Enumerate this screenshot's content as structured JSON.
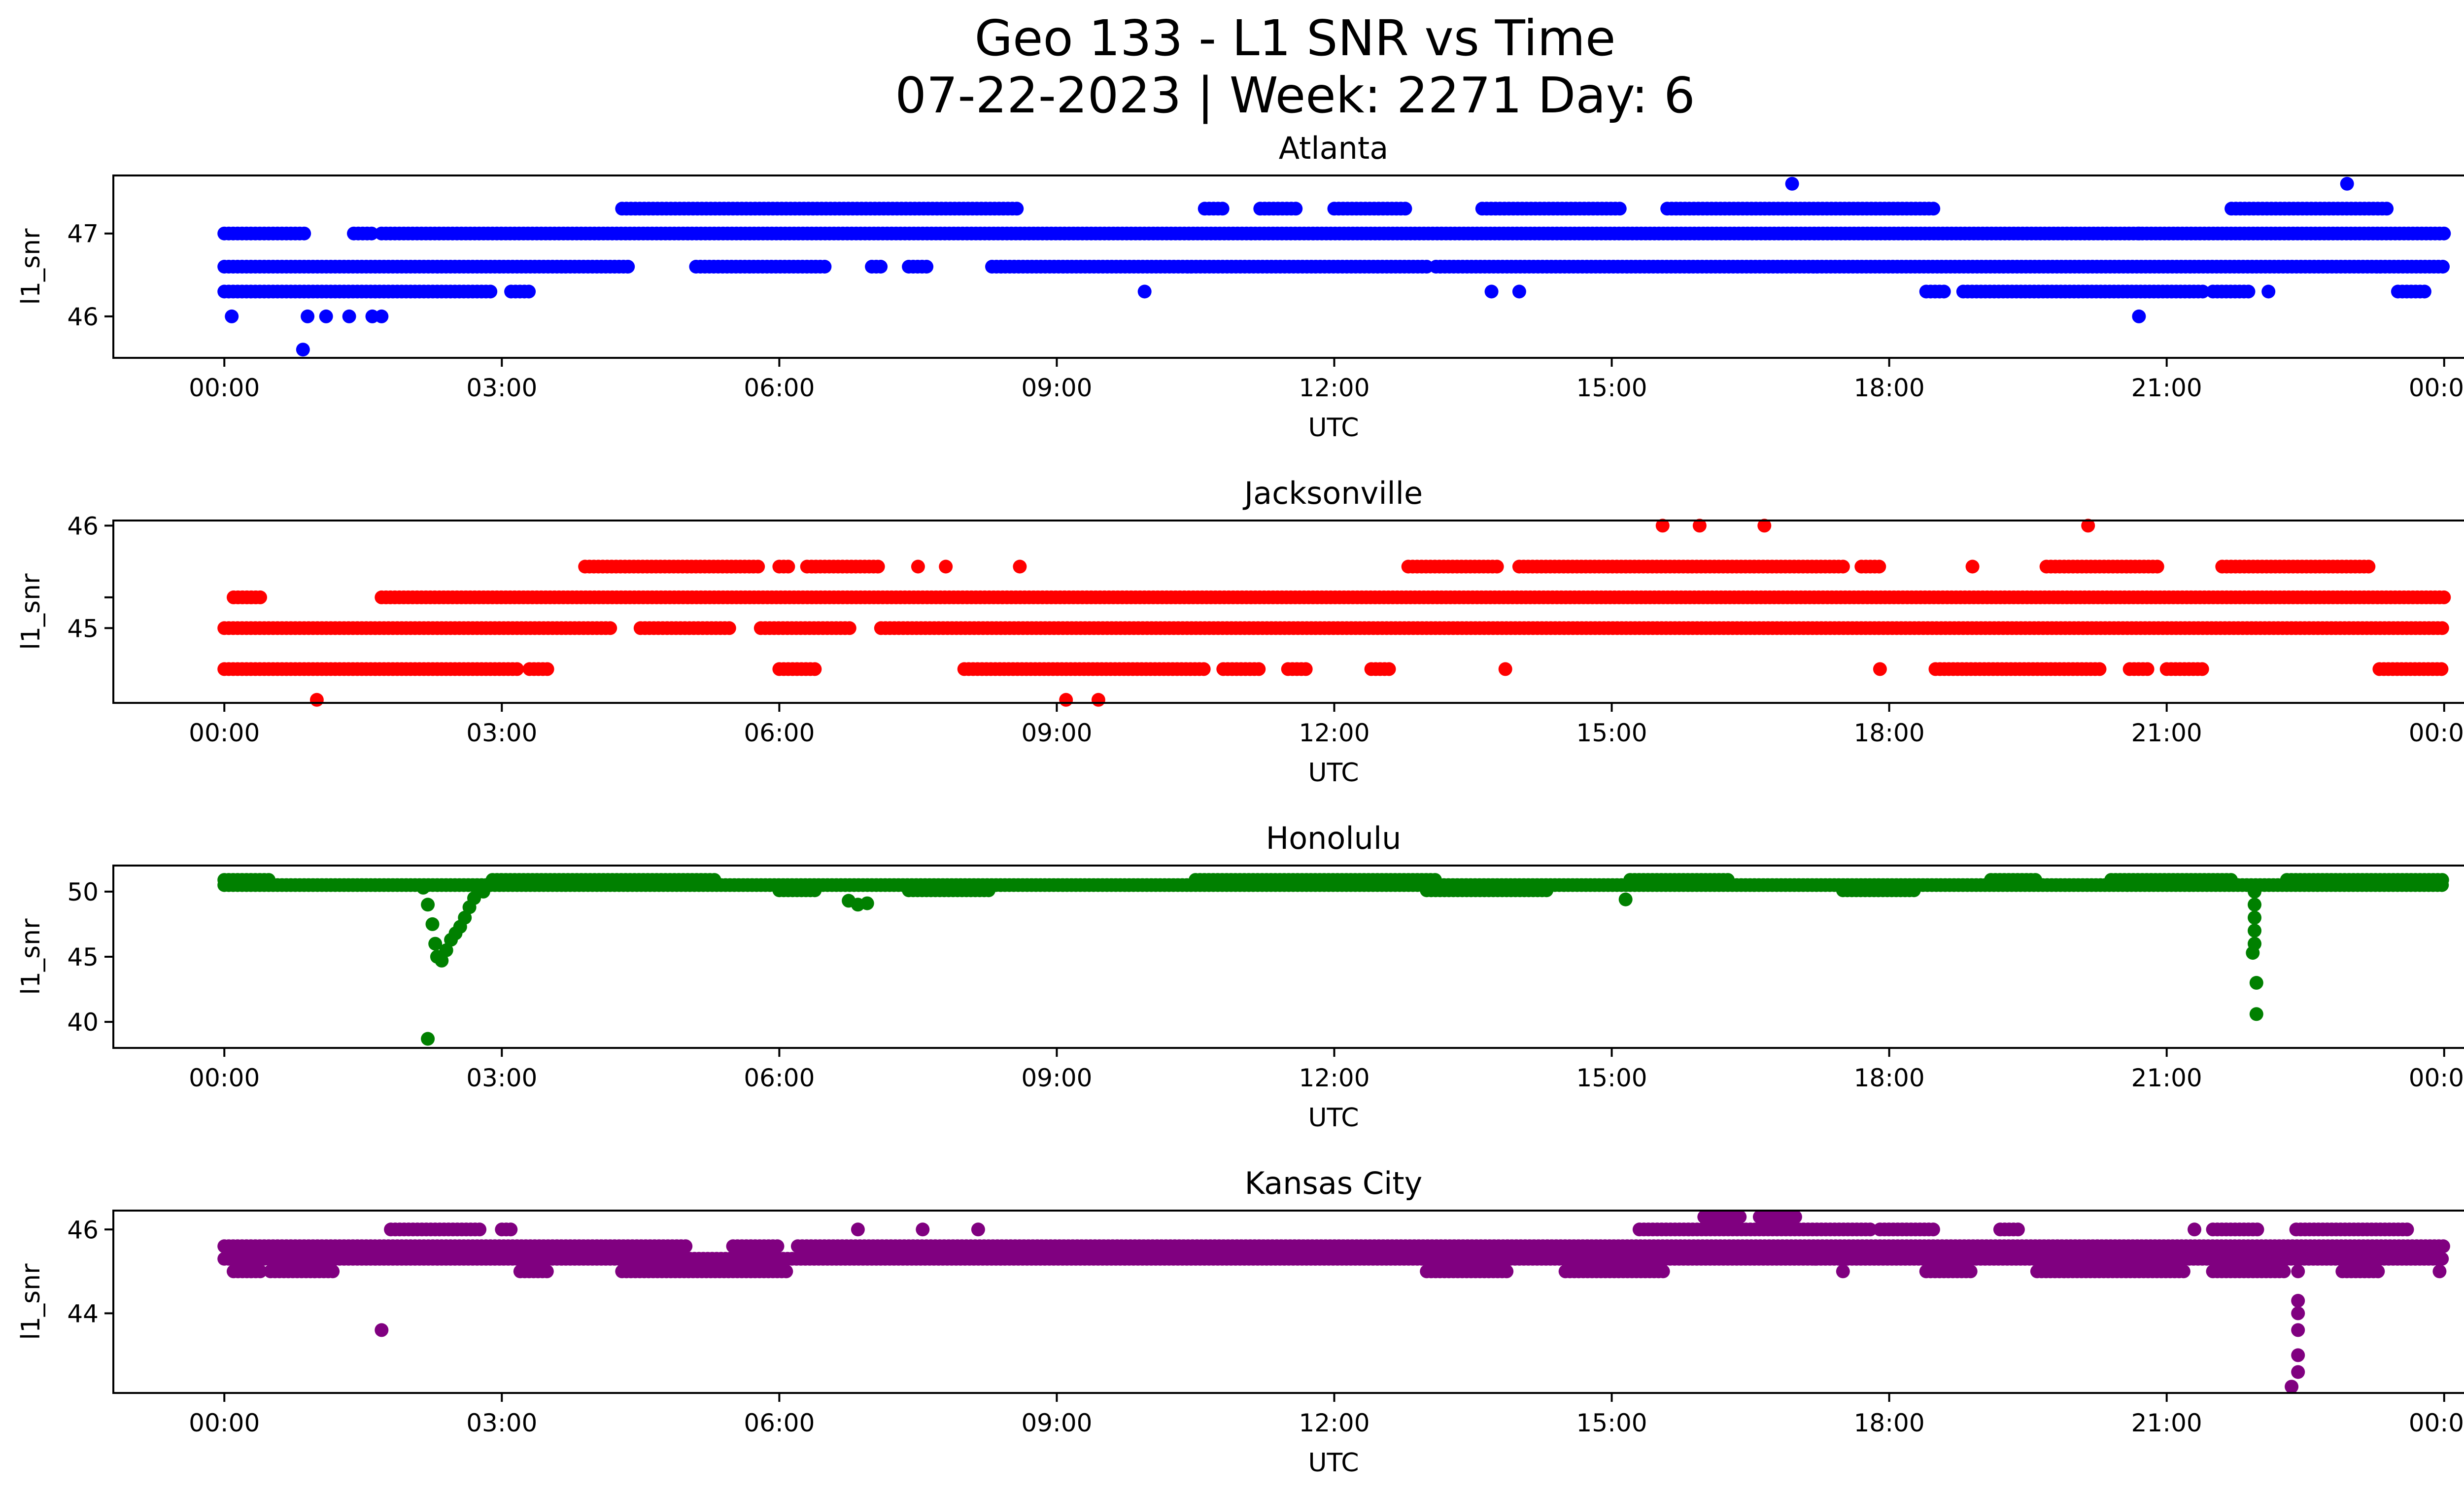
{
  "figure": {
    "title_line1": "Geo 133 - L1 SNR vs Time",
    "title_line2": "07-22-2023 | Week: 2271 Day: 6"
  },
  "chart_data": [
    {
      "type": "scatter",
      "title": "Atlanta",
      "xlabel": "UTC",
      "ylabel": "l1_snr",
      "color": "#0000ff",
      "xlim_hours": [
        -1.2,
        25.2
      ],
      "ylim": [
        45.5,
        47.7
      ],
      "yticks": [
        46,
        47
      ],
      "xtick_hours": [
        0,
        3,
        6,
        9,
        12,
        15,
        18,
        21,
        24
      ],
      "xtick_labels": [
        "00:00",
        "03:00",
        "06:00",
        "09:00",
        "12:00",
        "15:00",
        "18:00",
        "21:00",
        "00:00"
      ],
      "bands": [
        {
          "y": 47.0,
          "segments": [
            [
              0.0,
              0.9
            ],
            [
              1.4,
              1.6
            ],
            [
              1.7,
              24.0
            ]
          ]
        },
        {
          "y": 46.6,
          "segments": [
            [
              0.0,
              4.4
            ],
            [
              5.1,
              6.5
            ],
            [
              7.0,
              7.1
            ],
            [
              7.4,
              7.6
            ],
            [
              8.3,
              13.0
            ],
            [
              13.1,
              24.0
            ]
          ]
        },
        {
          "y": 46.3,
          "segments": [
            [
              0.0,
              2.9
            ],
            [
              3.1,
              3.3
            ],
            [
              18.4,
              18.6
            ],
            [
              18.8,
              21.4
            ],
            [
              21.5,
              21.9
            ],
            [
              23.5,
              23.8
            ]
          ]
        },
        {
          "y": 47.3,
          "segments": [
            [
              4.3,
              8.6
            ],
            [
              10.6,
              10.8
            ],
            [
              11.2,
              11.6
            ],
            [
              12.0,
              12.8
            ],
            [
              13.6,
              15.1
            ],
            [
              15.6,
              18.5
            ],
            [
              21.7,
              23.4
            ]
          ]
        }
      ],
      "outliers": [
        {
          "t": 0.08,
          "v": 46.0
        },
        {
          "t": 0.85,
          "v": 45.6
        },
        {
          "t": 0.9,
          "v": 46.0
        },
        {
          "t": 1.1,
          "v": 46.0
        },
        {
          "t": 1.35,
          "v": 46.0
        },
        {
          "t": 1.6,
          "v": 46.0
        },
        {
          "t": 1.7,
          "v": 46.0
        },
        {
          "t": 16.95,
          "v": 47.6
        },
        {
          "t": 22.95,
          "v": 47.6
        },
        {
          "t": 9.95,
          "v": 46.3
        },
        {
          "t": 13.7,
          "v": 46.3
        },
        {
          "t": 14.0,
          "v": 46.3
        },
        {
          "t": 20.7,
          "v": 46.0
        },
        {
          "t": 22.1,
          "v": 46.3
        },
        {
          "t": 20.7,
          "v": 47.0
        }
      ]
    },
    {
      "type": "scatter",
      "title": "Jacksonville",
      "xlabel": "UTC",
      "ylabel": "l1_snr",
      "color": "#ff0000",
      "xlim_hours": [
        -1.2,
        25.2
      ],
      "ylim": [
        44.27,
        46.05
      ],
      "yticks": [
        45,
        46
      ],
      "yticks_minor": [
        45.3
      ],
      "xtick_hours": [
        0,
        3,
        6,
        9,
        12,
        15,
        18,
        21,
        24
      ],
      "xtick_labels": [
        "00:00",
        "03:00",
        "06:00",
        "09:00",
        "12:00",
        "15:00",
        "18:00",
        "21:00",
        "00:00"
      ],
      "bands": [
        {
          "y": 45.0,
          "segments": [
            [
              0.0,
              4.2
            ],
            [
              4.5,
              5.5
            ],
            [
              5.8,
              6.8
            ],
            [
              7.1,
              24.0
            ]
          ]
        },
        {
          "y": 45.3,
          "segments": [
            [
              0.1,
              0.4
            ],
            [
              1.7,
              24.0
            ]
          ]
        },
        {
          "y": 44.6,
          "segments": [
            [
              0.0,
              3.2
            ],
            [
              3.3,
              3.5
            ],
            [
              6.0,
              6.4
            ],
            [
              8.0,
              10.6
            ],
            [
              10.8,
              11.2
            ],
            [
              11.5,
              11.7
            ],
            [
              12.4,
              12.6
            ],
            [
              18.5,
              20.3
            ],
            [
              20.6,
              20.8
            ],
            [
              21.0,
              21.4
            ],
            [
              23.3,
              24.0
            ]
          ]
        },
        {
          "y": 45.6,
          "segments": [
            [
              3.9,
              5.8
            ],
            [
              6.0,
              6.1
            ],
            [
              6.3,
              7.1
            ],
            [
              12.8,
              13.8
            ],
            [
              14.0,
              17.5
            ],
            [
              17.7,
              17.9
            ],
            [
              19.7,
              20.9
            ],
            [
              21.6,
              23.2
            ]
          ]
        }
      ],
      "outliers": [
        {
          "t": 1.0,
          "v": 44.3
        },
        {
          "t": 9.1,
          "v": 44.3
        },
        {
          "t": 9.45,
          "v": 44.3
        },
        {
          "t": 15.55,
          "v": 46.0
        },
        {
          "t": 15.95,
          "v": 46.0
        },
        {
          "t": 16.65,
          "v": 46.0
        },
        {
          "t": 20.15,
          "v": 46.0
        },
        {
          "t": 7.5,
          "v": 45.6
        },
        {
          "t": 7.8,
          "v": 45.6
        },
        {
          "t": 8.6,
          "v": 45.6
        },
        {
          "t": 18.9,
          "v": 45.6
        },
        {
          "t": 13.85,
          "v": 44.6
        },
        {
          "t": 17.9,
          "v": 44.6
        }
      ]
    },
    {
      "type": "scatter",
      "title": "Honolulu",
      "xlabel": "UTC",
      "ylabel": "l1_snr",
      "color": "#008000",
      "xlim_hours": [
        -1.2,
        25.2
      ],
      "ylim": [
        38.0,
        52.0
      ],
      "yticks": [
        40,
        45,
        50
      ],
      "xtick_hours": [
        0,
        3,
        6,
        9,
        12,
        15,
        18,
        21,
        24
      ],
      "xtick_labels": [
        "00:00",
        "03:00",
        "06:00",
        "09:00",
        "12:00",
        "15:00",
        "18:00",
        "21:00",
        "00:00"
      ],
      "bands": [
        {
          "y": 50.5,
          "segments": [
            [
              0.0,
              24.0
            ]
          ]
        },
        {
          "y": 50.9,
          "segments": [
            [
              0.0,
              0.5
            ],
            [
              2.9,
              5.3
            ],
            [
              10.5,
              13.1
            ],
            [
              15.2,
              16.3
            ],
            [
              19.1,
              19.6
            ],
            [
              20.4,
              21.7
            ],
            [
              22.3,
              24.0
            ]
          ]
        },
        {
          "y": 50.1,
          "segments": [
            [
              6.0,
              6.4
            ],
            [
              7.4,
              8.3
            ],
            [
              13.0,
              14.3
            ],
            [
              17.5,
              18.3
            ]
          ]
        }
      ],
      "dips": [
        {
          "t": 2.15,
          "v": 50.3
        },
        {
          "t": 2.2,
          "v": 49.0
        },
        {
          "t": 2.25,
          "v": 47.5
        },
        {
          "t": 2.28,
          "v": 46.0
        },
        {
          "t": 2.3,
          "v": 45.0
        },
        {
          "t": 2.35,
          "v": 44.7
        },
        {
          "t": 2.4,
          "v": 45.5
        },
        {
          "t": 2.45,
          "v": 46.3
        },
        {
          "t": 2.5,
          "v": 46.8
        },
        {
          "t": 2.55,
          "v": 47.3
        },
        {
          "t": 2.6,
          "v": 48.0
        },
        {
          "t": 2.65,
          "v": 48.8
        },
        {
          "t": 2.7,
          "v": 49.5
        },
        {
          "t": 2.8,
          "v": 50.0
        },
        {
          "t": 2.2,
          "v": 38.7
        },
        {
          "t": 6.75,
          "v": 49.3
        },
        {
          "t": 6.85,
          "v": 49.0
        },
        {
          "t": 6.95,
          "v": 49.1
        },
        {
          "t": 15.15,
          "v": 49.4
        },
        {
          "t": 21.95,
          "v": 50.0
        },
        {
          "t": 21.95,
          "v": 49.0
        },
        {
          "t": 21.95,
          "v": 48.0
        },
        {
          "t": 21.95,
          "v": 47.0
        },
        {
          "t": 21.95,
          "v": 46.0
        },
        {
          "t": 21.93,
          "v": 45.3
        },
        {
          "t": 21.97,
          "v": 43.0
        },
        {
          "t": 21.97,
          "v": 40.6
        }
      ]
    },
    {
      "type": "scatter",
      "title": "Kansas City",
      "xlabel": "UTC",
      "ylabel": "l1_snr",
      "color": "#800080",
      "xlim_hours": [
        -1.2,
        25.2
      ],
      "ylim": [
        42.1,
        46.45
      ],
      "yticks": [
        44,
        46
      ],
      "xtick_hours": [
        0,
        3,
        6,
        9,
        12,
        15,
        18,
        21,
        24
      ],
      "xtick_labels": [
        "00:00",
        "03:00",
        "06:00",
        "09:00",
        "12:00",
        "15:00",
        "18:00",
        "21:00",
        "00:00"
      ],
      "bands": [
        {
          "y": 45.3,
          "segments": [
            [
              0.0,
              24.0
            ]
          ]
        },
        {
          "y": 45.6,
          "segments": [
            [
              0.0,
              5.0
            ],
            [
              5.5,
              6.0
            ],
            [
              6.2,
              24.0
            ]
          ]
        },
        {
          "y": 45.0,
          "segments": [
            [
              0.1,
              0.4
            ],
            [
              0.5,
              1.2
            ],
            [
              3.2,
              3.5
            ],
            [
              4.3,
              6.1
            ],
            [
              13.0,
              13.9
            ],
            [
              14.5,
              15.6
            ],
            [
              18.4,
              18.9
            ],
            [
              19.6,
              21.2
            ],
            [
              21.5,
              22.3
            ],
            [
              22.9,
              23.3
            ]
          ]
        },
        {
          "y": 46.0,
          "segments": [
            [
              1.8,
              2.8
            ],
            [
              3.0,
              3.1
            ],
            [
              15.3,
              17.8
            ],
            [
              17.9,
              18.5
            ],
            [
              19.2,
              19.4
            ],
            [
              21.5,
              22.0
            ],
            [
              22.4,
              23.6
            ]
          ]
        },
        {
          "y": 46.3,
          "segments": [
            [
              16.0,
              16.4
            ],
            [
              16.6,
              17.0
            ]
          ]
        }
      ],
      "outliers": [
        {
          "t": 1.7,
          "v": 43.6
        },
        {
          "t": 6.85,
          "v": 46.0
        },
        {
          "t": 7.55,
          "v": 46.0
        },
        {
          "t": 8.15,
          "v": 46.0
        },
        {
          "t": 21.3,
          "v": 46.0
        },
        {
          "t": 23.95,
          "v": 45.0
        },
        {
          "t": 17.2,
          "v": 45.3
        },
        {
          "t": 17.5,
          "v": 45.0
        },
        {
          "t": 22.42,
          "v": 45.0
        },
        {
          "t": 22.42,
          "v": 44.3
        },
        {
          "t": 22.42,
          "v": 44.0
        },
        {
          "t": 22.42,
          "v": 43.6
        },
        {
          "t": 22.42,
          "v": 43.0
        },
        {
          "t": 22.42,
          "v": 42.6
        },
        {
          "t": 22.35,
          "v": 42.25
        }
      ]
    }
  ]
}
